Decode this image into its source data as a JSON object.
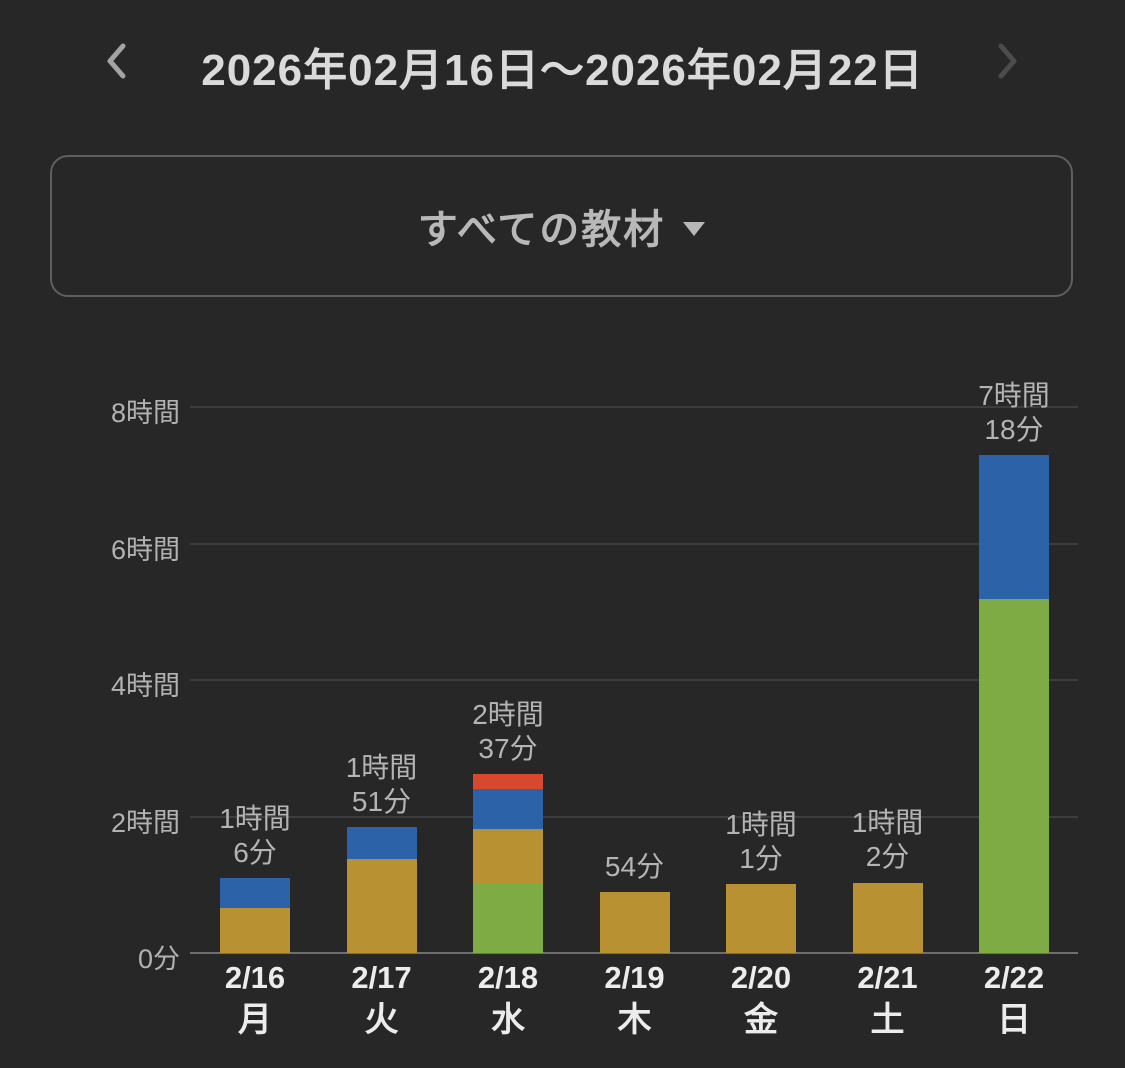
{
  "header": {
    "title": "2026年02月16日〜2026年02月22日",
    "prev_icon": "chevron-left-icon",
    "next_icon": "chevron-right-icon"
  },
  "filter_button": {
    "label": "すべての教材",
    "caret_icon": "caret-down-icon"
  },
  "colors": {
    "background": "#272727",
    "title_text": "#dadada",
    "chevron_left": "#a3a3a3",
    "chevron_right": "#4c4c4c",
    "button_border": "#5f5f5f",
    "button_text": "#b8b8b8",
    "gridline": "#3d3d3d",
    "baseline": "#6e6e6e",
    "axis_label": "#b2b2b2",
    "value_label": "#b4b4b4",
    "x_label": "#ececec",
    "series": {
      "green": "#7EAB44",
      "gold": "#B89133",
      "blue": "#2C62A8",
      "red": "#D6492E"
    }
  },
  "chart_data": {
    "type": "bar",
    "stacked": true,
    "unit": "minutes",
    "grid": true,
    "legend": "none",
    "ylim_minutes": [
      0,
      480
    ],
    "y_ticks": [
      {
        "label": "0分",
        "minutes": 0
      },
      {
        "label": "2時間",
        "minutes": 120
      },
      {
        "label": "4時間",
        "minutes": 240
      },
      {
        "label": "6時間",
        "minutes": 360
      },
      {
        "label": "8時間",
        "minutes": 480
      }
    ],
    "bars": [
      {
        "date": "2/16",
        "weekday": "月",
        "total_label_lines": [
          "1時間",
          "6分"
        ],
        "total_minutes": 66,
        "segments": [
          {
            "color": "gold",
            "minutes": 40
          },
          {
            "color": "blue",
            "minutes": 26
          }
        ]
      },
      {
        "date": "2/17",
        "weekday": "火",
        "total_label_lines": [
          "1時間",
          "51分"
        ],
        "total_minutes": 111,
        "segments": [
          {
            "color": "gold",
            "minutes": 83
          },
          {
            "color": "blue",
            "minutes": 28
          }
        ]
      },
      {
        "date": "2/18",
        "weekday": "水",
        "total_label_lines": [
          "2時間",
          "37分"
        ],
        "total_minutes": 157,
        "segments": [
          {
            "color": "green",
            "minutes": 62
          },
          {
            "color": "gold",
            "minutes": 47
          },
          {
            "color": "blue",
            "minutes": 35
          },
          {
            "color": "red",
            "minutes": 13
          }
        ]
      },
      {
        "date": "2/19",
        "weekday": "木",
        "total_label_lines": [
          "54分"
        ],
        "total_minutes": 54,
        "segments": [
          {
            "color": "gold",
            "minutes": 54
          }
        ]
      },
      {
        "date": "2/20",
        "weekday": "金",
        "total_label_lines": [
          "1時間",
          "1分"
        ],
        "total_minutes": 61,
        "segments": [
          {
            "color": "gold",
            "minutes": 61
          }
        ]
      },
      {
        "date": "2/21",
        "weekday": "土",
        "total_label_lines": [
          "1時間",
          "2分"
        ],
        "total_minutes": 62,
        "segments": [
          {
            "color": "gold",
            "minutes": 62
          }
        ]
      },
      {
        "date": "2/22",
        "weekday": "日",
        "total_label_lines": [
          "7時間",
          "18分"
        ],
        "total_minutes": 438,
        "segments": [
          {
            "color": "green",
            "minutes": 311
          },
          {
            "color": "blue",
            "minutes": 127
          }
        ]
      }
    ]
  }
}
